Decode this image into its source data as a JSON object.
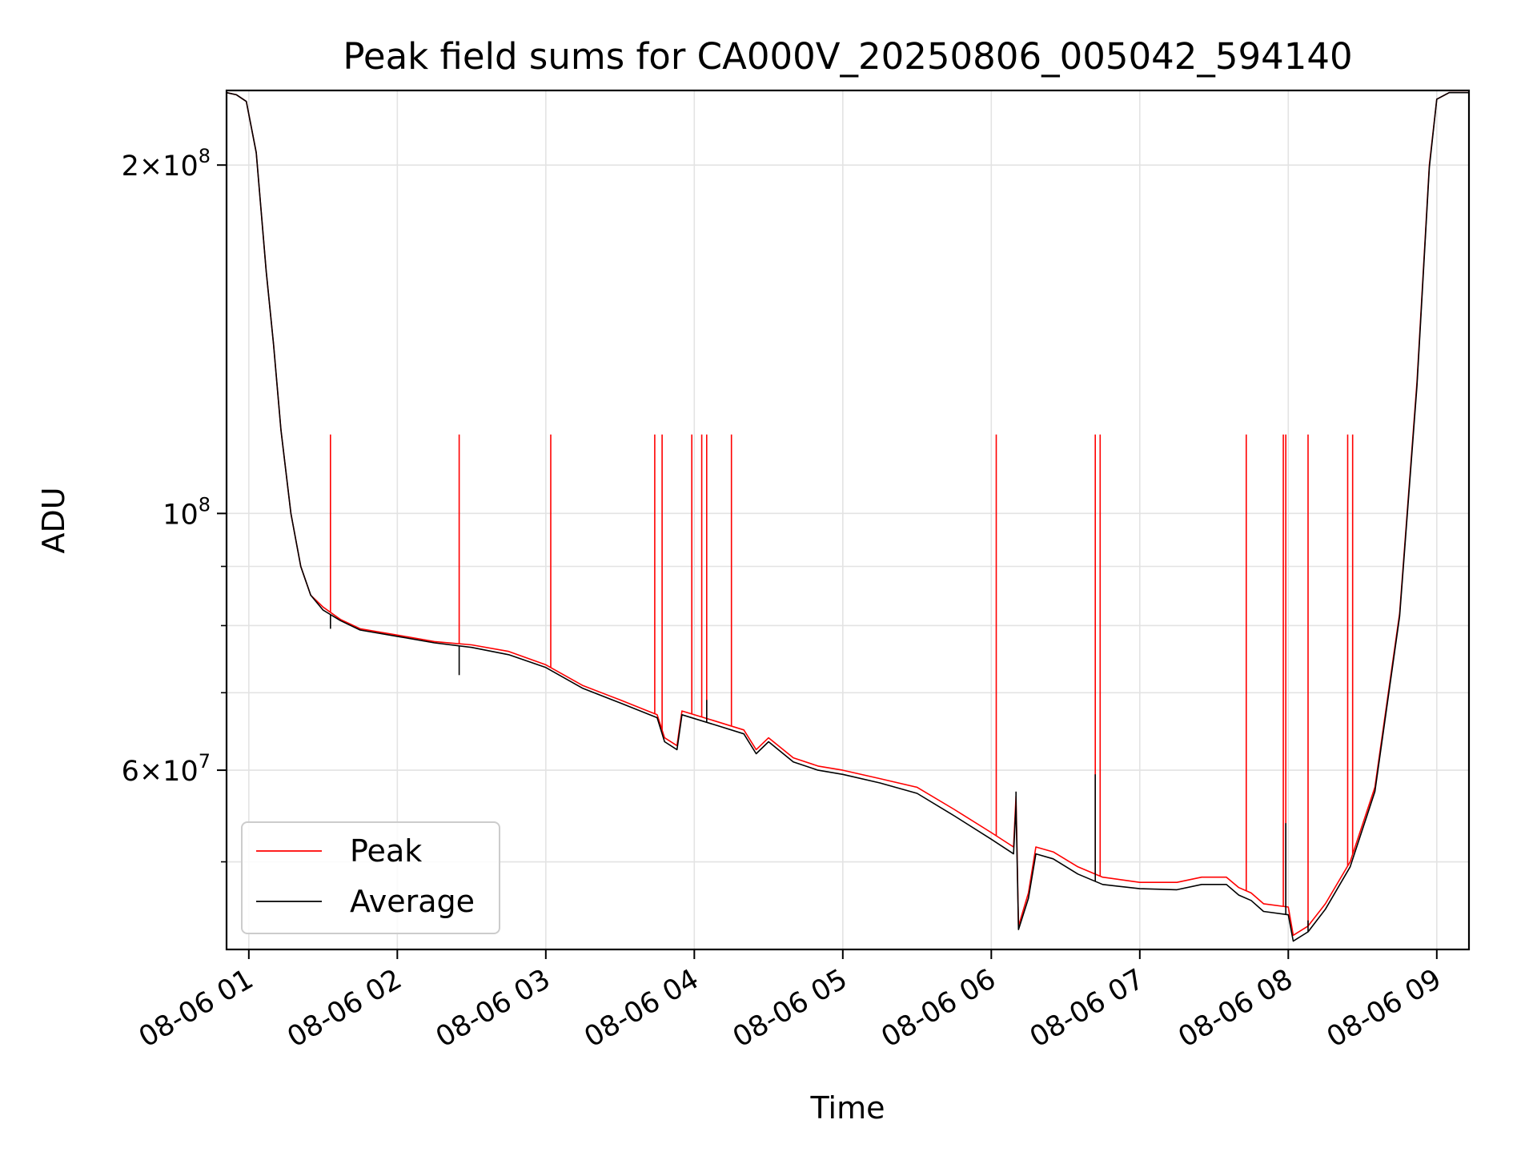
{
  "chart_data": {
    "type": "line",
    "title": "Peak field sums for CA000V_20250806_005042_594140",
    "xlabel": "Time",
    "ylabel": "ADU",
    "yscale": "log",
    "xlim": [
      "2025-08-06 00:51",
      "2025-08-06 09:13"
    ],
    "ylim": [
      42000000,
      232000000
    ],
    "x_ticks": [
      "08-06 01",
      "08-06 02",
      "08-06 03",
      "08-06 04",
      "08-06 05",
      "08-06 06",
      "08-06 07",
      "08-06 08",
      "08-06 09"
    ],
    "y_ticks": [
      {
        "value": 60000000,
        "base": "6",
        "exponent": "7"
      },
      {
        "value": 100000000,
        "base": "10",
        "exponent": "8"
      },
      {
        "value": 200000000,
        "base": "2",
        "exponent": "8"
      }
    ],
    "grid": true,
    "legend_position": "lower-left",
    "series": [
      {
        "name": "Peak",
        "color": "#ff0000",
        "points": [
          [
            "00:51",
            231000000
          ],
          [
            "00:55",
            230000000
          ],
          [
            "00:59",
            227000000
          ],
          [
            "01:03",
            205000000
          ],
          [
            "01:07",
            162000000
          ],
          [
            "01:10",
            140000000
          ],
          [
            "01:13",
            118000000
          ],
          [
            "01:17",
            100000000
          ],
          [
            "01:21",
            90000000
          ],
          [
            "01:25",
            85000000
          ],
          [
            "01:30",
            83000000
          ],
          [
            "01:37",
            81000000
          ],
          [
            "01:45",
            79500000
          ],
          [
            "02:00",
            78500000
          ],
          [
            "02:15",
            77500000
          ],
          [
            "02:30",
            77000000
          ],
          [
            "02:45",
            76000000
          ],
          [
            "03:00",
            74000000
          ],
          [
            "03:15",
            71000000
          ],
          [
            "03:30",
            69000000
          ],
          [
            "03:45",
            67000000
          ],
          [
            "03:48",
            64000000
          ],
          [
            "03:53",
            63000000
          ],
          [
            "03:55",
            67500000
          ],
          [
            "04:10",
            66000000
          ],
          [
            "04:20",
            65000000
          ],
          [
            "04:25",
            62500000
          ],
          [
            "04:30",
            64000000
          ],
          [
            "04:40",
            61500000
          ],
          [
            "04:50",
            60500000
          ],
          [
            "05:00",
            60000000
          ],
          [
            "05:15",
            59000000
          ],
          [
            "05:30",
            58000000
          ],
          [
            "05:45",
            55500000
          ],
          [
            "06:00",
            53000000
          ],
          [
            "06:09",
            51500000
          ],
          [
            "06:10",
            57000000
          ],
          [
            "06:11",
            44000000
          ],
          [
            "06:15",
            47000000
          ],
          [
            "06:18",
            51500000
          ],
          [
            "06:25",
            51000000
          ],
          [
            "06:35",
            49500000
          ],
          [
            "06:45",
            48500000
          ],
          [
            "07:00",
            48000000
          ],
          [
            "07:15",
            48000000
          ],
          [
            "07:25",
            48500000
          ],
          [
            "07:35",
            48500000
          ],
          [
            "07:40",
            47500000
          ],
          [
            "07:45",
            47000000
          ],
          [
            "07:50",
            46000000
          ],
          [
            "08:00",
            45700000
          ],
          [
            "08:02",
            43200000
          ],
          [
            "08:08",
            44000000
          ],
          [
            "08:15",
            46000000
          ],
          [
            "08:25",
            50000000
          ],
          [
            "08:35",
            58000000
          ],
          [
            "08:45",
            82000000
          ],
          [
            "08:52",
            130000000
          ],
          [
            "08:57",
            200000000
          ],
          [
            "09:00",
            228000000
          ],
          [
            "09:05",
            231000000
          ],
          [
            "09:13",
            231000000
          ]
        ],
        "spikes": [
          [
            "01:33",
            117000000
          ],
          [
            "02:25",
            117000000
          ],
          [
            "03:02",
            117000000
          ],
          [
            "03:44",
            117000000
          ],
          [
            "03:47",
            117000000
          ],
          [
            "03:59",
            117000000
          ],
          [
            "04:03",
            117000000
          ],
          [
            "04:05",
            117000000
          ],
          [
            "04:15",
            117000000
          ],
          [
            "06:02",
            117000000
          ],
          [
            "06:42",
            117000000
          ],
          [
            "06:44",
            117000000
          ],
          [
            "07:43",
            117000000
          ],
          [
            "07:58",
            117000000
          ],
          [
            "07:59",
            117000000
          ],
          [
            "08:08",
            117000000
          ],
          [
            "08:24",
            117000000
          ],
          [
            "08:26",
            117000000
          ]
        ]
      },
      {
        "name": "Average",
        "color": "#000000",
        "points": [
          [
            "00:51",
            231000000
          ],
          [
            "00:55",
            230000000
          ],
          [
            "00:59",
            227000000
          ],
          [
            "01:03",
            205000000
          ],
          [
            "01:07",
            162000000
          ],
          [
            "01:10",
            140000000
          ],
          [
            "01:13",
            118000000
          ],
          [
            "01:17",
            100000000
          ],
          [
            "01:21",
            90000000
          ],
          [
            "01:25",
            85000000
          ],
          [
            "01:30",
            82500000
          ],
          [
            "01:37",
            80800000
          ],
          [
            "01:45",
            79300000
          ],
          [
            "02:00",
            78300000
          ],
          [
            "02:15",
            77300000
          ],
          [
            "02:30",
            76600000
          ],
          [
            "02:45",
            75500000
          ],
          [
            "03:00",
            73600000
          ],
          [
            "03:15",
            70600000
          ],
          [
            "03:30",
            68600000
          ],
          [
            "03:45",
            66600000
          ],
          [
            "03:48",
            63500000
          ],
          [
            "03:53",
            62500000
          ],
          [
            "03:55",
            67000000
          ],
          [
            "04:10",
            65500000
          ],
          [
            "04:20",
            64500000
          ],
          [
            "04:25",
            62000000
          ],
          [
            "04:30",
            63500000
          ],
          [
            "04:40",
            61000000
          ],
          [
            "04:50",
            60000000
          ],
          [
            "05:00",
            59500000
          ],
          [
            "05:15",
            58500000
          ],
          [
            "05:30",
            57300000
          ],
          [
            "05:45",
            54800000
          ],
          [
            "06:00",
            52300000
          ],
          [
            "06:09",
            50800000
          ],
          [
            "06:10",
            56000000
          ],
          [
            "06:11",
            43700000
          ],
          [
            "06:15",
            46500000
          ],
          [
            "06:18",
            50800000
          ],
          [
            "06:25",
            50300000
          ],
          [
            "06:35",
            48800000
          ],
          [
            "06:45",
            47800000
          ],
          [
            "07:00",
            47400000
          ],
          [
            "07:15",
            47300000
          ],
          [
            "07:25",
            47800000
          ],
          [
            "07:35",
            47800000
          ],
          [
            "07:40",
            46800000
          ],
          [
            "07:45",
            46300000
          ],
          [
            "07:50",
            45300000
          ],
          [
            "08:00",
            45000000
          ],
          [
            "08:02",
            42700000
          ],
          [
            "08:08",
            43500000
          ],
          [
            "08:15",
            45500000
          ],
          [
            "08:25",
            49500000
          ],
          [
            "08:35",
            57500000
          ],
          [
            "08:45",
            81500000
          ],
          [
            "08:52",
            129000000
          ],
          [
            "08:57",
            199000000
          ],
          [
            "09:00",
            228000000
          ],
          [
            "09:05",
            231000000
          ],
          [
            "09:13",
            231000000
          ]
        ],
        "spikes": [
          [
            "01:33",
            79500000
          ],
          [
            "02:25",
            72500000
          ],
          [
            "04:05",
            69000000
          ],
          [
            "06:10",
            57500000
          ],
          [
            "06:42",
            59500000
          ],
          [
            "07:59",
            54000000
          ],
          [
            "08:08",
            44500000
          ]
        ]
      }
    ]
  }
}
